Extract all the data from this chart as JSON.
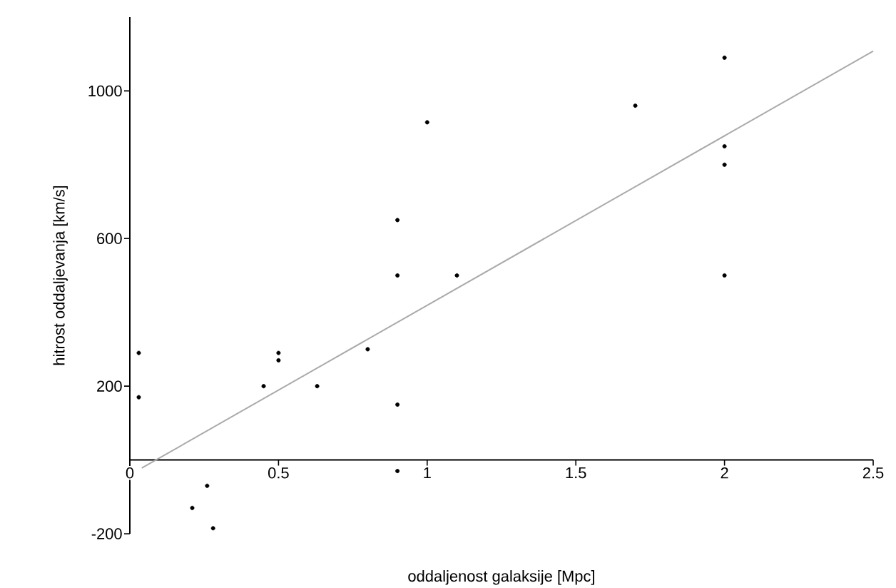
{
  "chart_data": {
    "type": "scatter",
    "xlabel": "oddaljenost galaksije [Mpc]",
    "ylabel": "hitrost oddaljevanja [km/s]",
    "xlim": [
      0,
      2.5
    ],
    "ylim": [
      -200,
      1200
    ],
    "xticks": [
      0,
      0.5,
      1,
      1.5,
      2,
      2.5
    ],
    "yticks": [
      -200,
      200,
      600,
      1000
    ],
    "series": [
      {
        "marker": "circle",
        "color": "#000000",
        "x": [
          0.03,
          0.03,
          0.21,
          0.26,
          0.28,
          0.45,
          0.5,
          0.5,
          0.63,
          0.8,
          0.9,
          0.9,
          0.9,
          0.9,
          1.0,
          1.1,
          1.7,
          2.0,
          2.0,
          2.0,
          2.0
        ],
        "values": [
          290,
          170,
          -130,
          -70,
          -185,
          200,
          290,
          270,
          200,
          300,
          650,
          500,
          150,
          -30,
          915,
          500,
          960,
          1090,
          850,
          800,
          500
        ]
      },
      {
        "type": "line",
        "marker": "none",
        "color": "#aaaaaa",
        "x": [
          0.04,
          2.5
        ],
        "values": [
          -22,
          1108
        ]
      }
    ]
  }
}
